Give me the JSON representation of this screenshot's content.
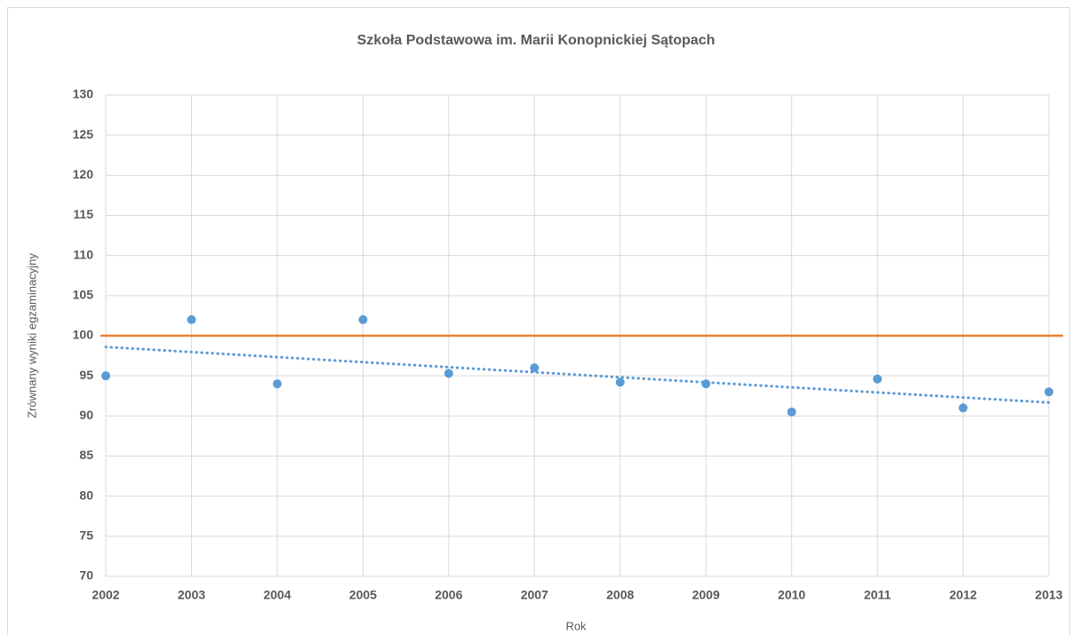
{
  "chart_data": {
    "type": "scatter",
    "title": "Szkoła Podstawowa im. Marii Konopnickiej Sątopach",
    "x_label": "Rok",
    "y_label": "Zrównany wyniki egzaminacyjny",
    "x": [
      2002,
      2003,
      2004,
      2005,
      2006,
      2007,
      2008,
      2009,
      2010,
      2011,
      2012,
      2013
    ],
    "values": [
      95,
      102,
      94,
      102,
      95.3,
      96,
      94.2,
      94,
      90.5,
      94.6,
      91,
      93
    ],
    "color": "#5b9bd5",
    "trendline": "linear",
    "hlines": [
      {
        "value": 100,
        "color": "#ed7d31"
      }
    ],
    "xlim": [
      2002,
      2013
    ],
    "xticks": [
      2002,
      2003,
      2004,
      2005,
      2006,
      2007,
      2008,
      2009,
      2010,
      2011,
      2012,
      2013
    ],
    "ylim": [
      70,
      130
    ],
    "yticks": [
      70,
      75,
      80,
      85,
      90,
      95,
      100,
      105,
      110,
      115,
      120,
      125,
      130
    ],
    "grid": true
  }
}
